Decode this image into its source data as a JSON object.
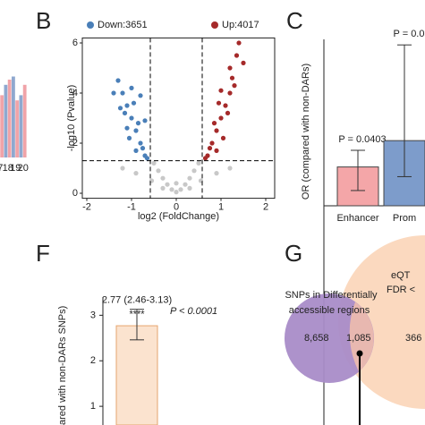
{
  "chart_data": [
    {
      "type": "bar",
      "categories": [
        "7",
        "18",
        "19",
        "20"
      ],
      "ylim": [
        0,
        100
      ],
      "series": [
        {
          "color": "#8fa8cf",
          "values": [
            62,
            70,
            78,
            60
          ]
        },
        {
          "color": "#f0a3a8",
          "values": [
            60,
            75,
            55,
            70
          ]
        }
      ]
    },
    {
      "type": "scatter",
      "panel": "B",
      "x_label": "log2 (FoldChange)",
      "y_label": "-log10 (Pvalue)",
      "xlim": [
        -2.1,
        2.2
      ],
      "ylim": [
        -0.2,
        6.2
      ],
      "xticks": [
        -2,
        -1,
        0,
        1,
        2
      ],
      "yticks": [
        0,
        2,
        4,
        6
      ],
      "vlines": [
        -0.58,
        0.58
      ],
      "hline": 1.3,
      "series": [
        {
          "color": "#c8c8c8",
          "x": [
            -0.5,
            -0.4,
            -0.3,
            -0.2,
            -0.1,
            0,
            0.1,
            0.2,
            0.3,
            0.4,
            0.5,
            -0.55,
            0.55,
            -1.2,
            1.2,
            -0.9,
            0.9,
            -0.3,
            0.3,
            0
          ],
          "values": [
            1.2,
            0.9,
            0.6,
            0.35,
            0.15,
            0.05,
            0.15,
            0.35,
            0.6,
            0.9,
            1.2,
            0.5,
            0.5,
            1.0,
            1.0,
            0.8,
            0.8,
            0.2,
            0.2,
            0.4
          ]
        },
        {
          "name": "Down:3651",
          "color": "#4a7fb8",
          "x": [
            -0.7,
            -0.8,
            -0.9,
            -1.0,
            -1.1,
            -1.2,
            -1.3,
            -0.75,
            -0.85,
            -0.95,
            -1.05,
            -1.15,
            -0.65,
            -0.9,
            -1.0,
            -0.8,
            -1.1,
            -1.25,
            -0.7,
            -1.4
          ],
          "values": [
            1.5,
            2.0,
            2.5,
            3.0,
            3.5,
            4.0,
            4.5,
            1.8,
            2.8,
            3.6,
            2.2,
            3.2,
            1.4,
            1.7,
            4.2,
            3.9,
            2.6,
            3.4,
            2.9,
            4.0
          ]
        },
        {
          "name": "Up:4017",
          "color": "#a52a2a",
          "x": [
            0.7,
            0.8,
            0.9,
            1.0,
            1.1,
            1.2,
            1.3,
            0.75,
            0.85,
            0.95,
            1.05,
            1.15,
            0.65,
            0.9,
            1.0,
            1.2,
            1.35,
            1.4,
            1.5,
            1.25
          ],
          "values": [
            1.5,
            2.0,
            2.5,
            3.0,
            3.5,
            4.0,
            4.3,
            1.8,
            2.8,
            3.6,
            2.2,
            3.2,
            1.4,
            1.7,
            4.1,
            5.0,
            5.5,
            6.0,
            5.2,
            4.6
          ]
        }
      ]
    },
    {
      "type": "errorbar",
      "panel": "C",
      "y_label": "OR (compared with non-DARs)",
      "ylim": [
        0,
        6
      ],
      "categories": [
        "Enhancer",
        "Prom"
      ],
      "values": [
        1.4,
        2.35
      ],
      "low": [
        0.55,
        1.05
      ],
      "high": [
        2.0,
        5.8
      ],
      "colors": [
        "#f4a6a8",
        "#7d9ccb"
      ],
      "annotations": [
        "P = 0.0403",
        "P = 0.0"
      ]
    },
    {
      "type": "errorbar",
      "panel": "F",
      "y_label": "ared with non-DARs SNPs)",
      "ylim": [
        0,
        3.4
      ],
      "yticks": [
        1,
        2,
        3
      ],
      "categories": [
        null
      ],
      "values": [
        2.77
      ],
      "low": [
        2.46
      ],
      "high": [
        3.13
      ],
      "colors": [
        "#fbe3cf"
      ],
      "annotations": [
        "2.77 (2.46-3.13)"
      ],
      "stars": "****",
      "p_text": "P < 0.0001"
    },
    {
      "type": "venn",
      "panel": "G",
      "sets": [
        {
          "lines": [
            "SNPs in Differentially",
            "accessible regions"
          ],
          "color": "#a98cc8"
        },
        {
          "lines": [
            "eQT",
            "FDR <"
          ],
          "color": "#fbd9bf"
        }
      ],
      "values": [
        8658,
        1085,
        366
      ],
      "value_labels": [
        "8,658",
        "1,085",
        "366"
      ]
    }
  ]
}
